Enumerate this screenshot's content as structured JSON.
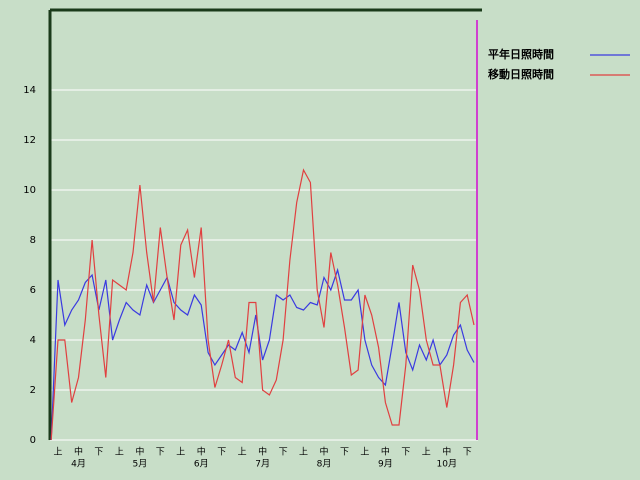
{
  "chart_data": {
    "type": "line",
    "categories": [
      null,
      "上",
      null,
      null,
      "中",
      null,
      null,
      "下",
      null,
      null,
      "上",
      null,
      null,
      "中",
      null,
      null,
      "下",
      null,
      null,
      "上",
      null,
      null,
      "中",
      null,
      null,
      "下",
      null,
      null,
      "上",
      null,
      null,
      "中",
      null,
      null,
      "下",
      null,
      null,
      "上",
      null,
      null,
      "中",
      null,
      null,
      "下",
      null,
      null,
      "上",
      null,
      null,
      "中",
      null,
      null,
      "下",
      null,
      null,
      "上",
      null,
      null,
      "中",
      null,
      null,
      "下",
      null
    ],
    "month_labels": [
      null,
      null,
      null,
      null,
      "4月",
      null,
      null,
      null,
      null,
      null,
      null,
      null,
      null,
      "5月",
      null,
      null,
      null,
      null,
      null,
      null,
      null,
      null,
      "6月",
      null,
      null,
      null,
      null,
      null,
      null,
      null,
      null,
      "7月",
      null,
      null,
      null,
      null,
      null,
      null,
      null,
      null,
      "8月",
      null,
      null,
      null,
      null,
      null,
      null,
      null,
      null,
      "9月",
      null,
      null,
      null,
      null,
      null,
      null,
      null,
      null,
      "10月",
      null,
      null,
      null,
      null
    ],
    "series": [
      {
        "name": "平年日照時間",
        "color": "#3a3ae0",
        "values": [
          0,
          6.4,
          4.6,
          5.2,
          5.6,
          6.3,
          6.6,
          5.2,
          6.4,
          4.0,
          4.8,
          5.5,
          5.2,
          5.0,
          6.2,
          5.5,
          6.0,
          6.5,
          5.5,
          5.2,
          5.0,
          5.8,
          5.4,
          3.5,
          3.0,
          3.4,
          3.8,
          3.6,
          4.3,
          3.5,
          5.0,
          3.2,
          4.0,
          5.8,
          5.6,
          5.8,
          5.3,
          5.2,
          5.5,
          5.4,
          6.5,
          6.0,
          6.8,
          5.6,
          5.6,
          6.0,
          4.0,
          3.0,
          2.5,
          2.2,
          3.8,
          5.5,
          3.5,
          2.8,
          3.8,
          3.2,
          4.0,
          3.0,
          3.4,
          4.2,
          4.6,
          3.6,
          3.1
        ]
      },
      {
        "name": "移動日照時間",
        "color": "#e04040",
        "values": [
          0,
          4.0,
          4.0,
          1.5,
          2.5,
          4.8,
          8.0,
          5.0,
          2.5,
          6.4,
          6.2,
          6.0,
          7.5,
          10.2,
          7.5,
          5.5,
          8.5,
          6.5,
          4.8,
          7.8,
          8.4,
          6.5,
          8.5,
          4.0,
          2.1,
          3.0,
          4.0,
          2.5,
          2.3,
          5.5,
          5.5,
          2.0,
          1.8,
          2.4,
          4.0,
          7.2,
          9.5,
          10.8,
          10.3,
          6.0,
          4.5,
          7.5,
          6.2,
          4.5,
          2.6,
          2.8,
          5.8,
          5.0,
          3.7,
          1.5,
          0.6,
          0.6,
          3.0,
          7.0,
          6.0,
          4.0,
          3.0,
          3.0,
          1.3,
          3.0,
          5.5,
          5.8,
          4.6
        ]
      }
    ],
    "ylim": [
      0,
      17.2
    ],
    "yticks": [
      0,
      2,
      4,
      6,
      8,
      10,
      12,
      14
    ],
    "grid": true
  }
}
